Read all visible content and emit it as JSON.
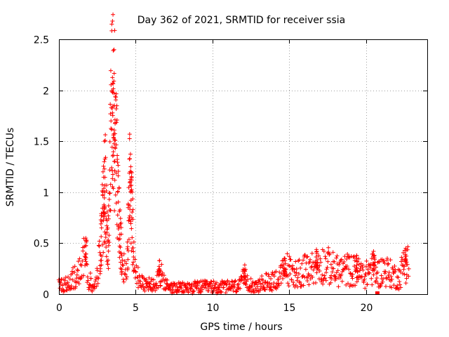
{
  "chart_data": {
    "type": "scatter",
    "title": "Day 362 of 2021, SRMTID for receiver ssia",
    "xlabel": "GPS time / hours",
    "ylabel": "SRMTID / TECUs",
    "xlim": [
      0,
      24
    ],
    "ylim": [
      0,
      2.5
    ],
    "xticks": [
      0,
      5,
      10,
      15,
      20
    ],
    "xtick_labels": [
      "0",
      "5",
      "10",
      "15",
      "20"
    ],
    "yticks": [
      0,
      0.5,
      1,
      1.5,
      2,
      2.5
    ],
    "ytick_labels": [
      "0",
      "0.5",
      "1",
      "1.5",
      "2",
      "2.5"
    ],
    "grid": true,
    "marker": "+",
    "color": "#ff0000",
    "series": [
      {
        "name": "SRMTID",
        "profile": [
          [
            0.0,
            0.11
          ],
          [
            0.3,
            0.09
          ],
          [
            0.6,
            0.1
          ],
          [
            0.9,
            0.15
          ],
          [
            1.2,
            0.18
          ],
          [
            1.5,
            0.24
          ],
          [
            1.7,
            0.4
          ],
          [
            1.85,
            0.18
          ],
          [
            2.1,
            0.12
          ],
          [
            2.3,
            0.1
          ],
          [
            2.5,
            0.16
          ],
          [
            2.7,
            0.45
          ],
          [
            2.9,
            0.85
          ],
          [
            3.0,
            1.15
          ],
          [
            3.1,
            0.7
          ],
          [
            3.2,
            0.4
          ],
          [
            3.35,
            1.3
          ],
          [
            3.45,
            1.8
          ],
          [
            3.55,
            1.95
          ],
          [
            3.7,
            1.5
          ],
          [
            3.85,
            0.9
          ],
          [
            4.0,
            0.55
          ],
          [
            4.15,
            0.35
          ],
          [
            4.3,
            0.22
          ],
          [
            4.45,
            0.3
          ],
          [
            4.6,
            1.1
          ],
          [
            4.75,
            0.8
          ],
          [
            4.85,
            0.45
          ],
          [
            5.0,
            0.2
          ],
          [
            5.3,
            0.12
          ],
          [
            5.6,
            0.08
          ],
          [
            6.0,
            0.1
          ],
          [
            6.4,
            0.14
          ],
          [
            6.6,
            0.22
          ],
          [
            6.8,
            0.12
          ],
          [
            7.2,
            0.06
          ],
          [
            8.0,
            0.06
          ],
          [
            9.0,
            0.07
          ],
          [
            10.0,
            0.07
          ],
          [
            11.0,
            0.07
          ],
          [
            11.8,
            0.08
          ],
          [
            12.1,
            0.17
          ],
          [
            12.4,
            0.12
          ],
          [
            12.8,
            0.06
          ],
          [
            13.2,
            0.1
          ],
          [
            13.8,
            0.13
          ],
          [
            14.4,
            0.16
          ],
          [
            14.8,
            0.26
          ],
          [
            15.2,
            0.2
          ],
          [
            15.8,
            0.22
          ],
          [
            16.4,
            0.24
          ],
          [
            16.9,
            0.3
          ],
          [
            17.5,
            0.28
          ],
          [
            18.2,
            0.22
          ],
          [
            18.8,
            0.24
          ],
          [
            19.4,
            0.22
          ],
          [
            20.0,
            0.18
          ],
          [
            20.3,
            0.26
          ],
          [
            20.8,
            0.2
          ],
          [
            21.2,
            0.24
          ],
          [
            21.8,
            0.18
          ],
          [
            22.2,
            0.16
          ],
          [
            22.5,
            0.32
          ],
          [
            22.8,
            0.3
          ]
        ],
        "peaks": [
          [
            1.75,
            0.55
          ],
          [
            2.95,
            1.3
          ],
          [
            3.5,
            2.07
          ],
          [
            3.62,
            1.85
          ],
          [
            4.68,
            1.25
          ],
          [
            6.55,
            0.33
          ],
          [
            12.1,
            0.24
          ],
          [
            14.7,
            0.35
          ],
          [
            16.8,
            0.42
          ],
          [
            19.4,
            0.38
          ],
          [
            20.5,
            0.42
          ],
          [
            22.6,
            0.45
          ]
        ],
        "outliers": [
          [
            20.75,
            0.0
          ]
        ]
      }
    ]
  }
}
